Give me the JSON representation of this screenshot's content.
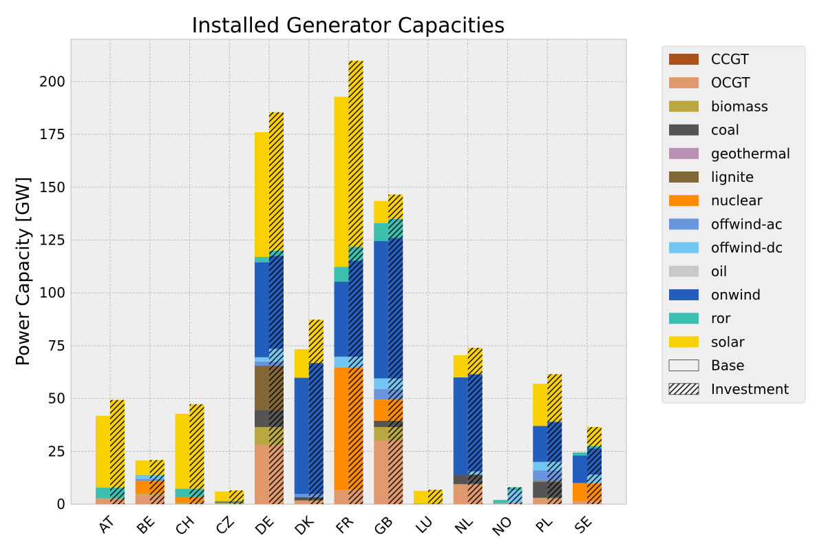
{
  "chart_data": {
    "type": "bar",
    "stacked": true,
    "title": "Installed Generator Capacities",
    "xlabel": "",
    "ylabel": "Power Capacity [GW]",
    "ylim": [
      0,
      220
    ],
    "yticks": [
      0,
      25,
      50,
      75,
      100,
      125,
      150,
      175,
      200
    ],
    "grid": true,
    "legend_position": "outside-right",
    "categories": [
      "AT",
      "BE",
      "CH",
      "CZ",
      "DE",
      "DK",
      "FR",
      "GB",
      "LU",
      "NL",
      "NO",
      "PL",
      "SE"
    ],
    "bar_groups": [
      "Base",
      "Investment"
    ],
    "carriers": [
      {
        "name": "CCGT",
        "color": "#a9541f"
      },
      {
        "name": "OCGT",
        "color": "#e0986c"
      },
      {
        "name": "biomass",
        "color": "#baa741"
      },
      {
        "name": "coal",
        "color": "#545454"
      },
      {
        "name": "geothermal",
        "color": "#ba91b1"
      },
      {
        "name": "lignite",
        "color": "#826837"
      },
      {
        "name": "nuclear",
        "color": "#ff8c00"
      },
      {
        "name": "offwind-ac",
        "color": "#6895dd"
      },
      {
        "name": "offwind-dc",
        "color": "#74c6f2"
      },
      {
        "name": "oil",
        "color": "#c9c9c9"
      },
      {
        "name": "onwind",
        "color": "#235ebc"
      },
      {
        "name": "ror",
        "color": "#3dbfb0"
      },
      {
        "name": "solar",
        "color": "#f9d002"
      }
    ],
    "series": [
      {
        "name": "CCGT",
        "base": [
          0,
          0,
          0,
          0,
          0,
          0,
          0,
          0,
          0,
          0,
          0,
          0,
          0
        ],
        "investment": [
          0,
          0,
          0,
          0,
          0,
          0,
          0,
          0,
          0,
          0,
          0,
          0,
          0
        ]
      },
      {
        "name": "OCGT",
        "base": [
          2.5,
          4.5,
          0.5,
          0.3,
          28,
          1.5,
          6.5,
          30,
          0,
          9,
          0.5,
          2.5,
          1.5
        ],
        "investment": [
          2.5,
          4.5,
          0.5,
          0.3,
          28,
          1.5,
          6.5,
          30,
          0,
          9,
          0.5,
          2.5,
          1.5
        ]
      },
      {
        "name": "biomass",
        "base": [
          0.3,
          0.5,
          0.3,
          0.3,
          8.5,
          0.3,
          0.3,
          6.5,
          0,
          0.5,
          0,
          0.5,
          0
        ],
        "investment": [
          0.3,
          0.5,
          0.3,
          0.3,
          8.5,
          0.3,
          0.3,
          6.5,
          0,
          0.5,
          0,
          0.5,
          0
        ]
      },
      {
        "name": "coal",
        "base": [
          0,
          0,
          0,
          0.3,
          8,
          1.5,
          0,
          3,
          0,
          4.5,
          0,
          7.5,
          0
        ],
        "investment": [
          0,
          0,
          0,
          0.3,
          8,
          1.5,
          0,
          3,
          0,
          4.5,
          0,
          7.5,
          0
        ]
      },
      {
        "name": "geothermal",
        "base": [
          0,
          0,
          0,
          0,
          0,
          0,
          0,
          0,
          0,
          0,
          0,
          0,
          0
        ],
        "investment": [
          0,
          0,
          0,
          0,
          0,
          0,
          0,
          0,
          0,
          0,
          0,
          0,
          0
        ]
      },
      {
        "name": "lignite",
        "base": [
          0,
          0,
          0,
          0.3,
          21,
          0,
          0,
          0,
          0,
          0,
          0,
          0.5,
          0
        ],
        "investment": [
          0,
          0,
          0,
          0.3,
          21,
          0,
          0,
          0,
          0,
          0,
          0,
          0.5,
          0
        ]
      },
      {
        "name": "nuclear",
        "base": [
          0,
          6,
          2.5,
          0,
          0,
          0,
          58,
          10,
          0,
          0,
          0,
          0,
          8.5
        ],
        "investment": [
          0,
          6,
          2.5,
          0,
          0,
          0,
          58,
          10,
          0,
          0,
          0,
          0,
          8.5
        ]
      },
      {
        "name": "offwind-ac",
        "base": [
          0,
          1,
          0,
          0,
          2,
          1.5,
          0,
          5,
          0,
          0,
          0,
          5,
          0
        ],
        "investment": [
          0,
          1,
          0,
          0,
          2,
          1.5,
          0,
          5,
          0,
          0,
          0,
          5,
          0
        ]
      },
      {
        "name": "offwind-dc",
        "base": [
          0,
          1.5,
          0,
          0,
          2,
          0,
          5,
          5,
          0,
          0,
          0,
          4,
          0
        ],
        "investment": [
          0,
          1.5,
          0,
          0,
          6,
          0,
          5,
          5,
          0,
          1.5,
          6,
          4,
          4
        ]
      },
      {
        "name": "oil",
        "base": [
          0,
          0,
          0,
          0,
          0,
          0,
          0,
          0,
          0,
          0,
          0,
          0,
          0
        ],
        "investment": [
          0,
          0,
          0,
          0,
          0,
          0,
          0,
          0,
          0,
          0,
          0,
          0,
          0
        ]
      },
      {
        "name": "onwind",
        "base": [
          0,
          0,
          0,
          0,
          45,
          55,
          35.5,
          65,
          0,
          46,
          0,
          17,
          13
        ],
        "investment": [
          0,
          0,
          0,
          0,
          44,
          62,
          45.5,
          66.5,
          0,
          46,
          0,
          19,
          12.5
        ]
      },
      {
        "name": "ror",
        "base": [
          5,
          0.2,
          4,
          0.3,
          2.5,
          0,
          7,
          8.5,
          0.3,
          0,
          1.5,
          0,
          1.5
        ],
        "investment": [
          5,
          0.2,
          4,
          0.3,
          2.5,
          0,
          6.5,
          9,
          0.3,
          0,
          1.5,
          0,
          1
        ]
      },
      {
        "name": "solar",
        "base": [
          34,
          7,
          35.5,
          4.5,
          59,
          13.5,
          80.5,
          10.5,
          6,
          10.5,
          0,
          20,
          0
        ],
        "investment": [
          41.5,
          7.2,
          40,
          5,
          65.5,
          20.5,
          88,
          11.5,
          6.5,
          12.5,
          0,
          22.5,
          9
        ]
      }
    ]
  },
  "legend": {
    "items": [
      {
        "label": "CCGT",
        "color": "#a9541f"
      },
      {
        "label": "OCGT",
        "color": "#e0986c"
      },
      {
        "label": "biomass",
        "color": "#baa741"
      },
      {
        "label": "coal",
        "color": "#545454"
      },
      {
        "label": "geothermal",
        "color": "#ba91b1"
      },
      {
        "label": "lignite",
        "color": "#826837"
      },
      {
        "label": "nuclear",
        "color": "#ff8c00"
      },
      {
        "label": "offwind-ac",
        "color": "#6895dd"
      },
      {
        "label": "offwind-dc",
        "color": "#74c6f2"
      },
      {
        "label": "oil",
        "color": "#c9c9c9"
      },
      {
        "label": "onwind",
        "color": "#235ebc"
      },
      {
        "label": "ror",
        "color": "#3dbfb0"
      },
      {
        "label": "solar",
        "color": "#f9d002"
      },
      {
        "label": "Base",
        "color": "#efefef",
        "pattern": "none"
      },
      {
        "label": "Investment",
        "color": "#efefef",
        "pattern": "hatch"
      }
    ]
  },
  "style": {
    "plot_background": "#eeeeee",
    "grid_color": "#b0b0b0",
    "hatch_color": "#000000"
  }
}
